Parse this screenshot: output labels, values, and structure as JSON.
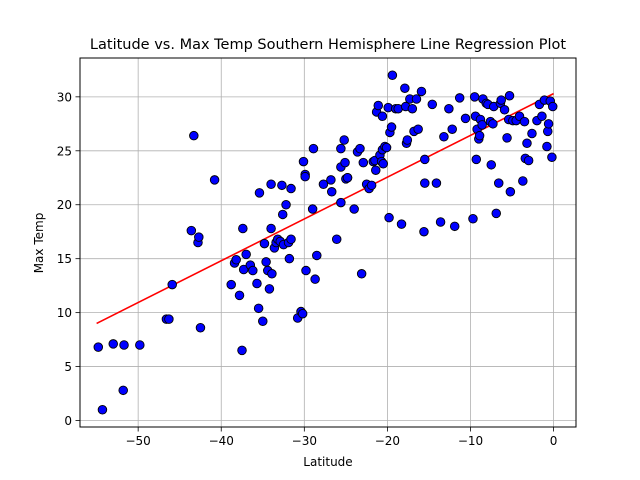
{
  "chart_data": {
    "type": "scatter",
    "title": "Latitude vs. Max Temp Southern Hemisphere Line Regression Plot",
    "xlabel": "Latitude",
    "ylabel": "Max Temp",
    "xlim": [
      -57,
      2.7
    ],
    "ylim": [
      -0.6,
      33.6
    ],
    "xticks": [
      -50,
      -40,
      -30,
      -20,
      -10,
      0
    ],
    "yticks": [
      0,
      5,
      10,
      15,
      20,
      25,
      30
    ],
    "grid": true,
    "marker_color": "#0000ff",
    "marker_edge": "#000000",
    "line_color": "#ff0000",
    "regression": {
      "x": [
        -55,
        0
      ],
      "y": [
        9,
        30.3
      ]
    },
    "points": [
      [
        -54.8,
        6.8
      ],
      [
        -54.3,
        1.0
      ],
      [
        -53.0,
        7.1
      ],
      [
        -51.7,
        7.0
      ],
      [
        -51.8,
        2.8
      ],
      [
        -49.8,
        7.0
      ],
      [
        -46.6,
        9.4
      ],
      [
        -46.3,
        9.4
      ],
      [
        -45.9,
        12.6
      ],
      [
        -43.6,
        17.6
      ],
      [
        -43.3,
        26.4
      ],
      [
        -42.8,
        16.5
      ],
      [
        -42.7,
        17.0
      ],
      [
        -42.5,
        8.6
      ],
      [
        -40.8,
        22.3
      ],
      [
        -38.8,
        12.6
      ],
      [
        -38.4,
        14.6
      ],
      [
        -38.2,
        14.9
      ],
      [
        -37.8,
        11.6
      ],
      [
        -37.5,
        6.5
      ],
      [
        -37.4,
        17.8
      ],
      [
        -37.3,
        14.0
      ],
      [
        -37.0,
        15.4
      ],
      [
        -36.5,
        14.4
      ],
      [
        -36.2,
        13.9
      ],
      [
        -35.7,
        12.7
      ],
      [
        -35.5,
        10.4
      ],
      [
        -35.4,
        21.1
      ],
      [
        -35.0,
        9.2
      ],
      [
        -34.8,
        16.4
      ],
      [
        -34.6,
        14.7
      ],
      [
        -34.4,
        13.9
      ],
      [
        -34.2,
        12.2
      ],
      [
        -34.0,
        21.9
      ],
      [
        -34.0,
        17.8
      ],
      [
        -33.9,
        13.6
      ],
      [
        -33.6,
        16.0
      ],
      [
        -33.4,
        16.5
      ],
      [
        -33.2,
        16.8
      ],
      [
        -32.9,
        16.6
      ],
      [
        -32.7,
        21.8
      ],
      [
        -32.6,
        19.1
      ],
      [
        -32.5,
        16.3
      ],
      [
        -32.2,
        20.0
      ],
      [
        -31.9,
        16.5
      ],
      [
        -31.8,
        15.0
      ],
      [
        -31.6,
        16.8
      ],
      [
        -31.6,
        21.5
      ],
      [
        -30.8,
        9.5
      ],
      [
        -30.4,
        10.1
      ],
      [
        -30.2,
        9.9
      ],
      [
        -30.1,
        24.0
      ],
      [
        -29.9,
        22.8
      ],
      [
        -29.9,
        22.6
      ],
      [
        -29.8,
        13.9
      ],
      [
        -29.0,
        19.6
      ],
      [
        -28.9,
        25.2
      ],
      [
        -28.7,
        13.1
      ],
      [
        -28.5,
        15.3
      ],
      [
        -27.7,
        21.9
      ],
      [
        -26.8,
        22.3
      ],
      [
        -26.7,
        21.2
      ],
      [
        -26.1,
        16.8
      ],
      [
        -25.6,
        20.2
      ],
      [
        -25.6,
        23.5
      ],
      [
        -25.6,
        25.2
      ],
      [
        -25.2,
        26.0
      ],
      [
        -25.1,
        23.9
      ],
      [
        -25.0,
        22.4
      ],
      [
        -24.8,
        22.5
      ],
      [
        -24.8,
        22.5
      ],
      [
        -24.0,
        19.6
      ],
      [
        -23.6,
        24.9
      ],
      [
        -23.3,
        25.2
      ],
      [
        -23.1,
        13.6
      ],
      [
        -22.9,
        23.9
      ],
      [
        -22.5,
        21.9
      ],
      [
        -22.2,
        21.5
      ],
      [
        -21.9,
        21.8
      ],
      [
        -21.7,
        24.0
      ],
      [
        -21.5,
        24.1
      ],
      [
        -21.4,
        23.2
      ],
      [
        -21.3,
        28.6
      ],
      [
        -21.1,
        29.2
      ],
      [
        -20.9,
        24.6
      ],
      [
        -20.7,
        24.0
      ],
      [
        -20.6,
        25.1
      ],
      [
        -20.6,
        28.2
      ],
      [
        -20.5,
        23.8
      ],
      [
        -20.3,
        25.4
      ],
      [
        -20.1,
        25.3
      ],
      [
        -19.9,
        29.0
      ],
      [
        -19.8,
        18.8
      ],
      [
        -19.7,
        26.7
      ],
      [
        -19.5,
        27.2
      ],
      [
        -19.4,
        32.0
      ],
      [
        -19.0,
        28.9
      ],
      [
        -18.7,
        28.9
      ],
      [
        -18.3,
        18.2
      ],
      [
        -17.9,
        30.8
      ],
      [
        -17.8,
        29.1
      ],
      [
        -17.7,
        25.7
      ],
      [
        -17.6,
        26.0
      ],
      [
        -17.3,
        29.8
      ],
      [
        -17.0,
        28.9
      ],
      [
        -16.8,
        26.8
      ],
      [
        -16.5,
        29.8
      ],
      [
        -16.3,
        27.0
      ],
      [
        -15.9,
        30.5
      ],
      [
        -15.6,
        17.5
      ],
      [
        -15.5,
        24.2
      ],
      [
        -15.5,
        22.0
      ],
      [
        -14.6,
        29.3
      ],
      [
        -14.1,
        22.0
      ],
      [
        -13.6,
        18.4
      ],
      [
        -13.2,
        26.3
      ],
      [
        -12.6,
        28.9
      ],
      [
        -12.2,
        27.0
      ],
      [
        -11.9,
        18.0
      ],
      [
        -11.3,
        29.9
      ],
      [
        -10.6,
        28.0
      ],
      [
        -9.7,
        18.7
      ],
      [
        -9.5,
        30.0
      ],
      [
        -9.4,
        28.2
      ],
      [
        -9.3,
        24.2
      ],
      [
        -9.2,
        27.0
      ],
      [
        -9.0,
        26.1
      ],
      [
        -8.9,
        26.4
      ],
      [
        -8.8,
        27.9
      ],
      [
        -8.6,
        27.4
      ],
      [
        -8.5,
        29.8
      ],
      [
        -8.1,
        29.4
      ],
      [
        -7.9,
        29.3
      ],
      [
        -7.6,
        27.7
      ],
      [
        -7.5,
        23.7
      ],
      [
        -7.3,
        27.5
      ],
      [
        -7.2,
        29.1
      ],
      [
        -6.9,
        19.2
      ],
      [
        -6.6,
        22.0
      ],
      [
        -6.4,
        29.4
      ],
      [
        -6.3,
        29.7
      ],
      [
        -5.9,
        28.8
      ],
      [
        -5.6,
        26.2
      ],
      [
        -5.4,
        27.9
      ],
      [
        -5.3,
        30.1
      ],
      [
        -5.2,
        21.2
      ],
      [
        -4.9,
        27.8
      ],
      [
        -4.5,
        27.8
      ],
      [
        -4.1,
        28.2
      ],
      [
        -3.7,
        22.2
      ],
      [
        -3.5,
        27.7
      ],
      [
        -3.4,
        24.3
      ],
      [
        -3.2,
        25.7
      ],
      [
        -3.0,
        24.1
      ],
      [
        -2.6,
        26.6
      ],
      [
        -2.0,
        27.8
      ],
      [
        -1.7,
        29.3
      ],
      [
        -1.4,
        28.2
      ],
      [
        -1.1,
        29.7
      ],
      [
        -0.8,
        25.4
      ],
      [
        -0.7,
        26.8
      ],
      [
        -0.6,
        27.5
      ],
      [
        -0.4,
        29.6
      ],
      [
        -0.2,
        24.4
      ],
      [
        -0.1,
        29.1
      ]
    ]
  }
}
